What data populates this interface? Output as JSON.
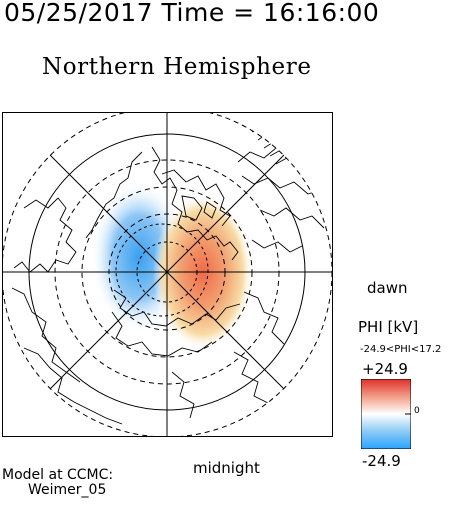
{
  "header": {
    "datetime": "05/25/2017 Time = 16:16:00"
  },
  "title": "Northern Hemisphere",
  "labels": {
    "dawn": "dawn",
    "midnight": "midnight"
  },
  "colorbar": {
    "title": "PHI [kV]",
    "range_text": "-24.9<PHI<17.2",
    "max_label": "+24.9",
    "zero_label": "0",
    "min_label": "-24.9",
    "min_color": "#2aa4ff",
    "mid_color": "#ffffff",
    "max_color": "#e0302a"
  },
  "footer": {
    "line1": "Model at CCMC:",
    "line2": "Weimer_05"
  }
}
